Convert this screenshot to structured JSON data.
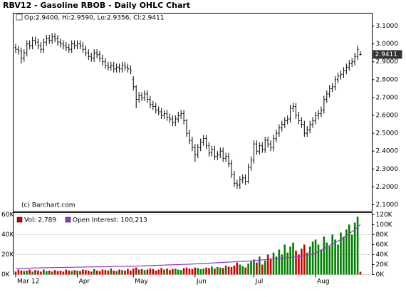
{
  "chart_data": [
    {
      "type": "ohlc",
      "title": "RBV12 - Gasoline RBOB - Daily OHLC Chart",
      "info_text": "Op:2.9400, Hi:2.9590, Lo:2.9356, Cl:2.9411",
      "watermark": "(c) Barchart.com",
      "last_price_label": "2.9411",
      "color": "#000000",
      "ylim": [
        2.064,
        3.172
      ],
      "yticks": [
        {
          "value": 2.1,
          "label": "2.1000"
        },
        {
          "value": 2.2,
          "label": "2.2000"
        },
        {
          "value": 2.3,
          "label": "2.3000"
        },
        {
          "value": 2.4,
          "label": "2.4000"
        },
        {
          "value": 2.5,
          "label": "2.5000"
        },
        {
          "value": 2.6,
          "label": "2.6000"
        },
        {
          "value": 2.7,
          "label": "2.7000"
        },
        {
          "value": 2.8,
          "label": "2.8000"
        },
        {
          "value": 2.9,
          "label": "2.9000"
        },
        {
          "value": 3.0,
          "label": "3.0000"
        },
        {
          "value": 3.1,
          "label": "3.1000"
        }
      ],
      "open": [
        2.98,
        2.97,
        2.96,
        2.92,
        2.95,
        3.0,
        2.99,
        3.02,
        3.01,
        2.99,
        2.97,
        3.01,
        3.03,
        3.02,
        3.04,
        3.03,
        3.01,
        3.0,
        2.99,
        2.98,
        2.97,
        3.0,
        2.99,
        3.0,
        2.99,
        2.97,
        2.95,
        2.93,
        2.92,
        2.95,
        2.94,
        2.92,
        2.9,
        2.88,
        2.87,
        2.88,
        2.86,
        2.87,
        2.86,
        2.88,
        2.87,
        2.86,
        2.8,
        2.76,
        2.69,
        2.71,
        2.7,
        2.72,
        2.69,
        2.66,
        2.65,
        2.63,
        2.62,
        2.6,
        2.61,
        2.59,
        2.58,
        2.56,
        2.58,
        2.6,
        2.61,
        2.57,
        2.5,
        2.46,
        2.42,
        2.38,
        2.42,
        2.45,
        2.47,
        2.43,
        2.39,
        2.41,
        2.37,
        2.38,
        2.4,
        2.36,
        2.37,
        2.33,
        2.27,
        2.22,
        2.21,
        2.24,
        2.25,
        2.23,
        2.31,
        2.35,
        2.44,
        2.4,
        2.43,
        2.41,
        2.46,
        2.44,
        2.42,
        2.47,
        2.5,
        2.53,
        2.55,
        2.57,
        2.58,
        2.64,
        2.65,
        2.6,
        2.57,
        2.55,
        2.5,
        2.52,
        2.55,
        2.57,
        2.6,
        2.61,
        2.63,
        2.69,
        2.72,
        2.75,
        2.76,
        2.8,
        2.82,
        2.83,
        2.85,
        2.87,
        2.89,
        2.9,
        2.93,
        2.94
      ],
      "high": [
        3.0,
        2.99,
        2.98,
        2.97,
        3.02,
        3.02,
        3.04,
        3.04,
        3.03,
        3.01,
        3.03,
        3.05,
        3.05,
        3.06,
        3.06,
        3.05,
        3.03,
        3.02,
        3.01,
        3.0,
        3.02,
        3.02,
        3.02,
        3.02,
        3.01,
        2.99,
        2.97,
        2.95,
        2.97,
        2.97,
        2.96,
        2.94,
        2.92,
        2.9,
        2.9,
        2.9,
        2.89,
        2.89,
        2.9,
        2.9,
        2.89,
        2.88,
        2.82,
        2.77,
        2.73,
        2.73,
        2.74,
        2.74,
        2.71,
        2.68,
        2.67,
        2.65,
        2.64,
        2.63,
        2.63,
        2.61,
        2.6,
        2.6,
        2.62,
        2.63,
        2.63,
        2.58,
        2.52,
        2.48,
        2.44,
        2.44,
        2.47,
        2.49,
        2.49,
        2.45,
        2.43,
        2.43,
        2.4,
        2.42,
        2.42,
        2.39,
        2.39,
        2.35,
        2.29,
        2.24,
        2.26,
        2.27,
        2.27,
        2.33,
        2.37,
        2.46,
        2.46,
        2.45,
        2.45,
        2.48,
        2.48,
        2.46,
        2.49,
        2.52,
        2.55,
        2.57,
        2.59,
        2.6,
        2.66,
        2.67,
        2.67,
        2.62,
        2.59,
        2.57,
        2.54,
        2.57,
        2.59,
        2.62,
        2.63,
        2.65,
        2.71,
        2.74,
        2.77,
        2.78,
        2.82,
        2.84,
        2.85,
        2.87,
        2.89,
        2.91,
        2.92,
        2.95,
        2.99,
        2.959
      ],
      "low": [
        2.95,
        2.94,
        2.89,
        2.9,
        2.93,
        2.97,
        2.97,
        2.99,
        2.97,
        2.95,
        2.95,
        2.99,
        3.0,
        3.0,
        3.01,
        2.99,
        2.98,
        2.97,
        2.96,
        2.95,
        2.95,
        2.97,
        2.97,
        2.97,
        2.95,
        2.93,
        2.91,
        2.9,
        2.9,
        2.92,
        2.9,
        2.88,
        2.86,
        2.85,
        2.85,
        2.84,
        2.84,
        2.84,
        2.84,
        2.85,
        2.84,
        2.83,
        2.74,
        2.64,
        2.67,
        2.68,
        2.68,
        2.67,
        2.64,
        2.63,
        2.61,
        2.6,
        2.58,
        2.58,
        2.57,
        2.56,
        2.54,
        2.54,
        2.56,
        2.58,
        2.55,
        2.48,
        2.44,
        2.4,
        2.34,
        2.36,
        2.4,
        2.43,
        2.41,
        2.37,
        2.37,
        2.35,
        2.35,
        2.36,
        2.34,
        2.34,
        2.31,
        2.25,
        2.2,
        2.19,
        2.19,
        2.22,
        2.21,
        2.22,
        2.29,
        2.33,
        2.38,
        2.38,
        2.39,
        2.39,
        2.42,
        2.4,
        2.4,
        2.45,
        2.48,
        2.51,
        2.53,
        2.55,
        2.56,
        2.62,
        2.58,
        2.55,
        2.53,
        2.48,
        2.48,
        2.5,
        2.53,
        2.55,
        2.58,
        2.59,
        2.61,
        2.67,
        2.7,
        2.73,
        2.74,
        2.78,
        2.8,
        2.81,
        2.83,
        2.85,
        2.87,
        2.88,
        2.91,
        2.9356
      ],
      "close": [
        2.97,
        2.96,
        2.92,
        2.95,
        3.0,
        2.99,
        3.02,
        3.01,
        2.99,
        2.97,
        3.01,
        3.03,
        3.02,
        3.04,
        3.03,
        3.01,
        3.0,
        2.99,
        2.98,
        2.97,
        3.0,
        2.99,
        3.0,
        2.99,
        2.97,
        2.95,
        2.93,
        2.92,
        2.95,
        2.94,
        2.92,
        2.9,
        2.88,
        2.87,
        2.88,
        2.86,
        2.87,
        2.86,
        2.88,
        2.87,
        2.86,
        2.85,
        2.76,
        2.69,
        2.71,
        2.7,
        2.72,
        2.69,
        2.66,
        2.65,
        2.63,
        2.62,
        2.6,
        2.61,
        2.59,
        2.58,
        2.56,
        2.58,
        2.6,
        2.61,
        2.57,
        2.5,
        2.46,
        2.42,
        2.38,
        2.42,
        2.45,
        2.47,
        2.43,
        2.39,
        2.41,
        2.37,
        2.38,
        2.4,
        2.36,
        2.37,
        2.33,
        2.27,
        2.22,
        2.21,
        2.24,
        2.25,
        2.23,
        2.31,
        2.35,
        2.44,
        2.4,
        2.43,
        2.41,
        2.46,
        2.44,
        2.42,
        2.47,
        2.5,
        2.53,
        2.55,
        2.57,
        2.58,
        2.64,
        2.65,
        2.6,
        2.57,
        2.55,
        2.5,
        2.52,
        2.55,
        2.57,
        2.6,
        2.61,
        2.63,
        2.69,
        2.72,
        2.75,
        2.76,
        2.8,
        2.82,
        2.83,
        2.85,
        2.87,
        2.89,
        2.9,
        2.93,
        2.97,
        2.9411
      ]
    },
    {
      "type": "volume",
      "categories": [
        "Mar 12",
        null,
        null,
        null,
        null,
        null,
        null,
        null,
        null,
        null,
        null,
        null,
        null,
        null,
        null,
        null,
        null,
        null,
        null,
        null,
        null,
        null,
        "Apr",
        null,
        null,
        null,
        null,
        null,
        null,
        null,
        null,
        null,
        null,
        null,
        null,
        null,
        null,
        null,
        null,
        null,
        null,
        null,
        "May",
        null,
        null,
        null,
        null,
        null,
        null,
        null,
        null,
        null,
        null,
        null,
        null,
        null,
        null,
        null,
        null,
        null,
        null,
        null,
        null,
        null,
        "Jun",
        null,
        null,
        null,
        null,
        null,
        null,
        null,
        null,
        null,
        null,
        null,
        null,
        null,
        null,
        null,
        null,
        null,
        null,
        null,
        null,
        "Jul",
        null,
        null,
        null,
        null,
        null,
        null,
        null,
        null,
        null,
        null,
        null,
        null,
        null,
        null,
        null,
        null,
        null,
        null,
        null,
        null,
        null,
        "Aug",
        null,
        null,
        null,
        null,
        null,
        null,
        null,
        null,
        null,
        null,
        null,
        null,
        null,
        null,
        null,
        null
      ],
      "up_color": "#008000",
      "down_color": "#cc0000",
      "ylim": [
        0,
        62000
      ],
      "yticks": [
        {
          "value": 0,
          "label": "0K"
        },
        {
          "value": 20000,
          "label": "20K"
        },
        {
          "value": 40000,
          "label": "40K"
        },
        {
          "value": 60000,
          "label": "60K"
        }
      ],
      "y2lim": [
        0,
        124000
      ],
      "y2ticks": [
        {
          "value": 0,
          "label": "0K"
        },
        {
          "value": 20000,
          "label": "20K"
        },
        {
          "value": 40000,
          "label": "40K"
        },
        {
          "value": 60000,
          "label": "60K"
        },
        {
          "value": 80000,
          "label": "80K"
        },
        {
          "value": 100000,
          "label": "100K"
        },
        {
          "value": 120000,
          "label": "120K"
        }
      ],
      "grid": true,
      "series": [
        {
          "name": "Vol: 2,789",
          "color": "#cc0000",
          "values": [
            3000,
            5000,
            4000,
            3500,
            4000,
            5000,
            3000,
            4500,
            4000,
            3000,
            5000,
            3500,
            4000,
            3000,
            4500,
            3500,
            4000,
            3000,
            5000,
            4000,
            3500,
            4500,
            4000,
            3500,
            5000,
            4500,
            4000,
            3000,
            5500,
            4000,
            3500,
            5000,
            4500,
            4000,
            6000,
            4000,
            3500,
            5000,
            4500,
            4000,
            5500,
            4000,
            6000,
            7000,
            5000,
            5500,
            4500,
            5000,
            6000,
            5500,
            4000,
            5000,
            6500,
            5000,
            6000,
            4500,
            5500,
            6000,
            5000,
            4500,
            6500,
            7000,
            6000,
            5500,
            7000,
            6500,
            5500,
            6000,
            7000,
            6500,
            8000,
            6000,
            7500,
            7000,
            6500,
            9000,
            8000,
            7500,
            9000,
            12000,
            10000,
            8500,
            7000,
            11000,
            13000,
            15000,
            12000,
            18000,
            10000,
            14000,
            20000,
            16000,
            22000,
            18000,
            25000,
            20000,
            30000,
            22000,
            28000,
            32000,
            24000,
            20000,
            26000,
            30000,
            22000,
            28000,
            33000,
            35000,
            30000,
            25000,
            38000,
            32000,
            28000,
            40000,
            35000,
            30000,
            42000,
            38000,
            45000,
            50000,
            40000,
            52000,
            58000,
            2789
          ]
        },
        {
          "name": "Open Interest: 100,213",
          "color": "#9933cc",
          "axis": "y2",
          "values": [
            12000,
            12200,
            12400,
            12500,
            12700,
            12900,
            13000,
            13200,
            13300,
            13500,
            13600,
            13700,
            13800,
            13900,
            14000,
            14100,
            14200,
            14300,
            14400,
            14500,
            14600,
            14700,
            14800,
            14900,
            15000,
            15100,
            15200,
            15300,
            15400,
            15500,
            15600,
            15700,
            15800,
            15900,
            16000,
            16100,
            16200,
            16300,
            16400,
            16500,
            16600,
            16700,
            16800,
            17000,
            17200,
            17400,
            17600,
            17800,
            18000,
            18200,
            18400,
            18600,
            18800,
            19000,
            19200,
            19400,
            19600,
            19800,
            20000,
            20200,
            20400,
            20600,
            20800,
            21000,
            21300,
            21600,
            21900,
            22200,
            22500,
            22800,
            23100,
            23400,
            23700,
            24000,
            24300,
            24600,
            24900,
            25200,
            25500,
            25800,
            26100,
            26400,
            26700,
            27000,
            27300,
            27800,
            28300,
            28800,
            29300,
            29800,
            30300,
            30800,
            31300,
            31800,
            32300,
            32800,
            33300,
            33800,
            34300,
            34800,
            35300,
            36000,
            37000,
            38000,
            39000,
            40000,
            41000,
            43000,
            46000,
            49000,
            52000,
            55000,
            58000,
            61000,
            64000,
            67000,
            70000,
            74000,
            78000,
            82000,
            86000,
            90000,
            95000,
            100213
          ]
        }
      ]
    }
  ]
}
